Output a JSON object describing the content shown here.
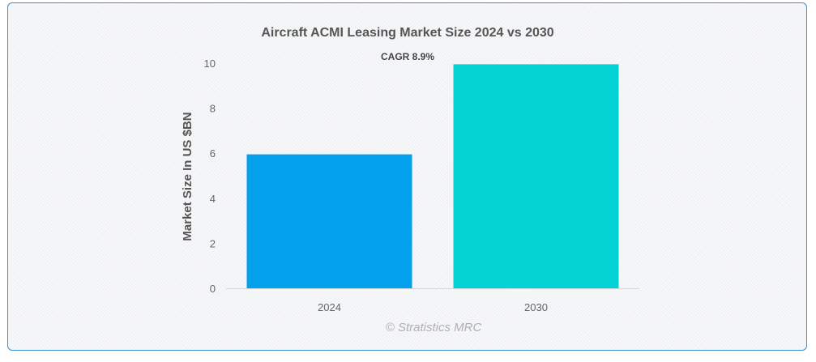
{
  "chart_data": {
    "type": "bar",
    "title": "Aircraft ACMI Leasing Market Size 2024 vs 2030",
    "annotation": "CAGR 8.9%",
    "ylabel": "Market Size In US $BN",
    "xlabel": "",
    "categories": [
      "2024",
      "2030"
    ],
    "values": [
      5.95,
      9.95
    ],
    "colors": [
      "#03a0eb",
      "#03d3d2"
    ],
    "ylim": [
      0,
      10
    ],
    "yticks": [
      0,
      2,
      4,
      6,
      8,
      10
    ],
    "grid": false,
    "legend": "none"
  },
  "credit": "© Stratistics MRC"
}
